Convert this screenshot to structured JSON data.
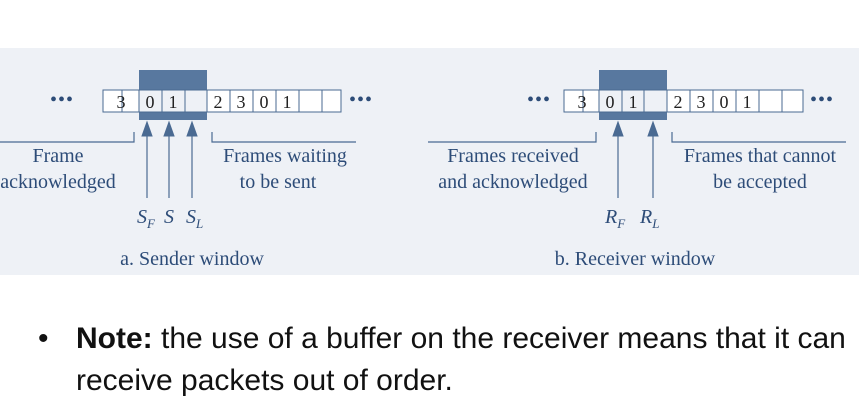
{
  "sender": {
    "cells": [
      "3",
      "0",
      "1",
      "2",
      "3",
      "0",
      "1"
    ],
    "ellipsis": "•••",
    "left_label": [
      "Frame",
      "acknowledged"
    ],
    "right_label": [
      "Frames waiting",
      "to be sent"
    ],
    "pointers": [
      "S",
      "F",
      "S",
      "S",
      "L"
    ],
    "caption": "a. Sender window"
  },
  "receiver": {
    "cells": [
      "3",
      "0",
      "1",
      "2",
      "3",
      "0",
      "1"
    ],
    "ellipsis": "•••",
    "left_label": [
      "Frames received",
      "and acknowledged"
    ],
    "right_label": [
      "Frames that cannot",
      "be accepted"
    ],
    "pointers": [
      "R",
      "F",
      "R",
      "L"
    ],
    "caption": "b. Receiver window"
  },
  "note": {
    "bullet": "•",
    "bold": "Note:",
    "text": "the use of a buffer on the receiver means that it can receive packets out of order."
  },
  "colors": {
    "window_fill": "#58789f",
    "line": "#4a6a92",
    "frame_bg": "#eef1f6"
  }
}
